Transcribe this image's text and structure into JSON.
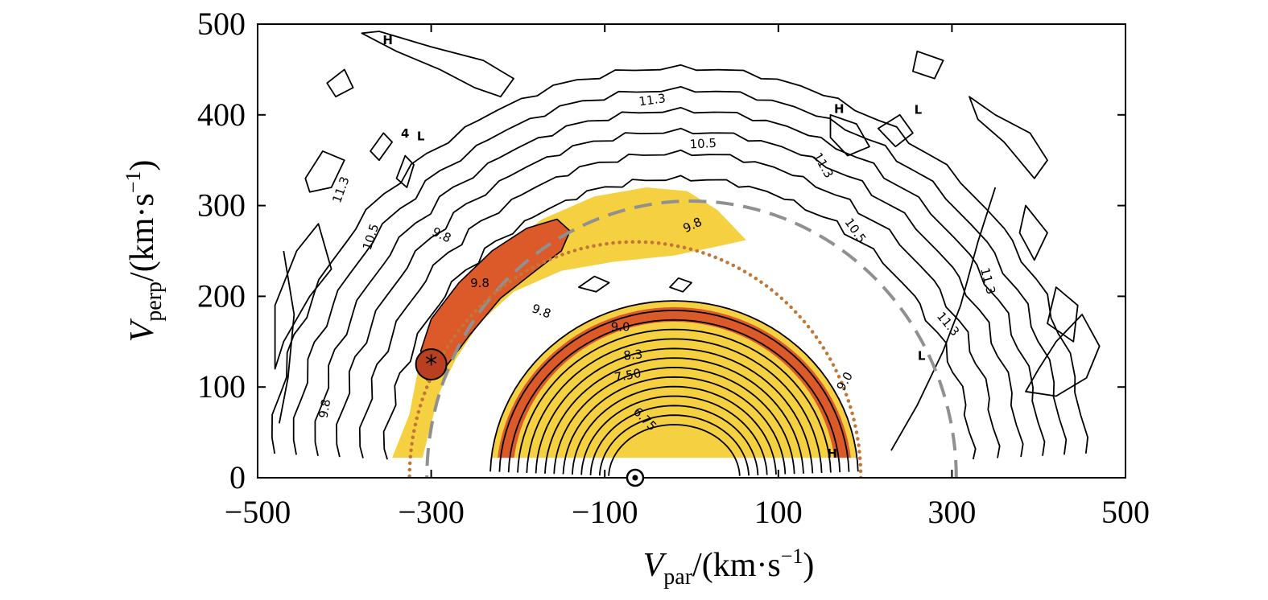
{
  "chart_data": {
    "type": "contour",
    "xlabel": {
      "base": "V",
      "sub": "par",
      "unit": "/(km·s",
      "sup": "−1",
      "close": ")"
    },
    "ylabel": {
      "base": "V",
      "sub": "perp",
      "unit": "/(km·s",
      "sup": "−1",
      "close": ")"
    },
    "xlim": [
      -500,
      500
    ],
    "ylim": [
      0,
      500
    ],
    "x_ticks": [
      -500,
      -300,
      -100,
      100,
      300,
      500
    ],
    "x_tick_labels": [
      "−500",
      "−300",
      "−100",
      "100",
      "300",
      "500"
    ],
    "y_ticks": [
      0,
      100,
      200,
      300,
      400,
      500
    ],
    "y_tick_labels": [
      "0",
      "100",
      "200",
      "300",
      "400",
      "500"
    ],
    "fill_colors": {
      "light": "#f5d040",
      "dark": "#dc5a2a"
    },
    "level_labels": [
      {
        "text": "11.3",
        "x": -60,
        "y": 410,
        "rot": -8
      },
      {
        "text": "10.5",
        "x": -2,
        "y": 363,
        "rot": -3
      },
      {
        "text": "11.3",
        "x": -405,
        "y": 302,
        "rot": -70
      },
      {
        "text": "10.5",
        "x": -370,
        "y": 250,
        "rot": -72
      },
      {
        "text": "9.8",
        "x": -300,
        "y": 268,
        "rot": 25
      },
      {
        "text": "9.8",
        "x": -255,
        "y": 210,
        "rot": 0
      },
      {
        "text": "9.8",
        "x": -7,
        "y": 270,
        "rot": -25
      },
      {
        "text": "9.8",
        "x": -185,
        "y": 183,
        "rot": 20
      },
      {
        "text": "9.0",
        "x": -93,
        "y": 162,
        "rot": 0
      },
      {
        "text": "8.3",
        "x": -78,
        "y": 130,
        "rot": -5
      },
      {
        "text": "7.50",
        "x": -88,
        "y": 106,
        "rot": -10
      },
      {
        "text": "6.75",
        "x": -68,
        "y": 72,
        "rot": 45
      },
      {
        "text": "9.8",
        "x": -420,
        "y": 65,
        "rot": -80
      },
      {
        "text": "9.0",
        "x": 175,
        "y": 95,
        "rot": -60
      },
      {
        "text": "11.3",
        "x": 140,
        "y": 355,
        "rot": 60
      },
      {
        "text": "10.5",
        "x": 176,
        "y": 282,
        "rot": 55
      },
      {
        "text": "11.3",
        "x": 333,
        "y": 230,
        "rot": 75
      },
      {
        "text": "11.3",
        "x": 282,
        "y": 178,
        "rot": 50
      }
    ],
    "markers": [
      {
        "text": "H",
        "x": -350,
        "y": 478
      },
      {
        "text": "L",
        "x": -312,
        "y": 372
      },
      {
        "text": "4",
        "x": -330,
        "y": 375
      },
      {
        "text": "H",
        "x": 170,
        "y": 402
      },
      {
        "text": "L",
        "x": 261,
        "y": 401
      },
      {
        "text": "H",
        "x": 162,
        "y": 22
      },
      {
        "text": "L",
        "x": 265,
        "y": 130
      }
    ],
    "circle_markers": [
      {
        "x": -300,
        "y": 125,
        "size": "large",
        "glyph": "*"
      },
      {
        "x": -65,
        "y": 0,
        "size": "small",
        "glyph": "dot"
      }
    ],
    "dashed_circle": {
      "center_x": 0,
      "center_y": 0,
      "radius": 305
    },
    "dotted_circle": {
      "center_x": -65,
      "center_y": 0,
      "radius": 260
    },
    "grid": false
  }
}
